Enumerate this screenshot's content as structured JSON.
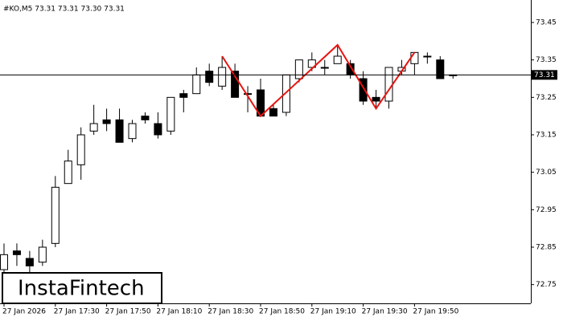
{
  "chart_data": {
    "type": "candlestick",
    "info": "#KO,M5  73.31 73.31 73.30 73.31",
    "watermark": "InstaFintech",
    "categories": [
      "27 Jan 2026",
      null,
      null,
      null,
      "27 Jan 17:30",
      null,
      null,
      null,
      "27 Jan 17:50",
      null,
      null,
      null,
      "27 Jan 18:10",
      null,
      null,
      null,
      "27 Jan 18:30",
      null,
      null,
      null,
      "27 Jan 18:50",
      null,
      null,
      null,
      "27 Jan 19:10",
      null,
      null,
      null,
      "27 Jan 19:30",
      null,
      null,
      null,
      "27 Jan 19:50",
      null,
      null,
      null
    ],
    "open": [
      72.79,
      72.84,
      72.82,
      72.81,
      72.86,
      73.02,
      73.07,
      73.16,
      73.19,
      73.19,
      73.14,
      73.2,
      73.18,
      73.16,
      73.26,
      73.26,
      73.32,
      73.28,
      73.32,
      73.26,
      73.27,
      73.22,
      73.21,
      73.3,
      73.33,
      73.33,
      73.34,
      73.34,
      73.3,
      73.25,
      73.24,
      73.32,
      73.34,
      73.36,
      73.35,
      73.31
    ],
    "high": [
      72.86,
      72.86,
      72.84,
      72.87,
      73.04,
      73.11,
      73.17,
      73.23,
      73.22,
      73.22,
      73.19,
      73.21,
      73.21,
      73.25,
      73.27,
      73.33,
      73.34,
      73.36,
      73.34,
      73.28,
      73.3,
      73.23,
      73.31,
      73.35,
      73.37,
      73.35,
      73.39,
      73.35,
      73.32,
      73.27,
      73.33,
      73.35,
      73.37,
      73.37,
      73.36,
      73.31
    ],
    "low": [
      72.78,
      72.8,
      72.78,
      72.8,
      72.85,
      73.02,
      73.03,
      73.15,
      73.16,
      73.13,
      73.13,
      73.18,
      73.14,
      73.15,
      73.21,
      73.26,
      73.28,
      73.27,
      73.25,
      73.21,
      73.2,
      73.2,
      73.2,
      73.29,
      73.32,
      73.31,
      73.34,
      73.3,
      73.23,
      73.22,
      73.22,
      73.31,
      73.31,
      73.34,
      73.3,
      73.3
    ],
    "close": [
      72.83,
      72.83,
      72.8,
      72.85,
      73.01,
      73.08,
      73.15,
      73.18,
      73.18,
      73.13,
      73.18,
      73.19,
      73.15,
      73.25,
      73.25,
      73.31,
      73.29,
      73.33,
      73.25,
      73.26,
      73.2,
      73.2,
      73.31,
      73.35,
      73.35,
      73.33,
      73.36,
      73.31,
      73.24,
      73.24,
      73.33,
      73.33,
      73.37,
      73.36,
      73.3,
      73.31
    ],
    "up_color": "#ffffff",
    "down_color": "#000000",
    "pattern_color": "#e8140f",
    "last_price": 73.31,
    "ylim": [
      72.7,
      73.51
    ],
    "yticks": [
      72.75,
      72.85,
      72.95,
      73.05,
      73.15,
      73.25,
      73.35,
      73.45
    ]
  }
}
